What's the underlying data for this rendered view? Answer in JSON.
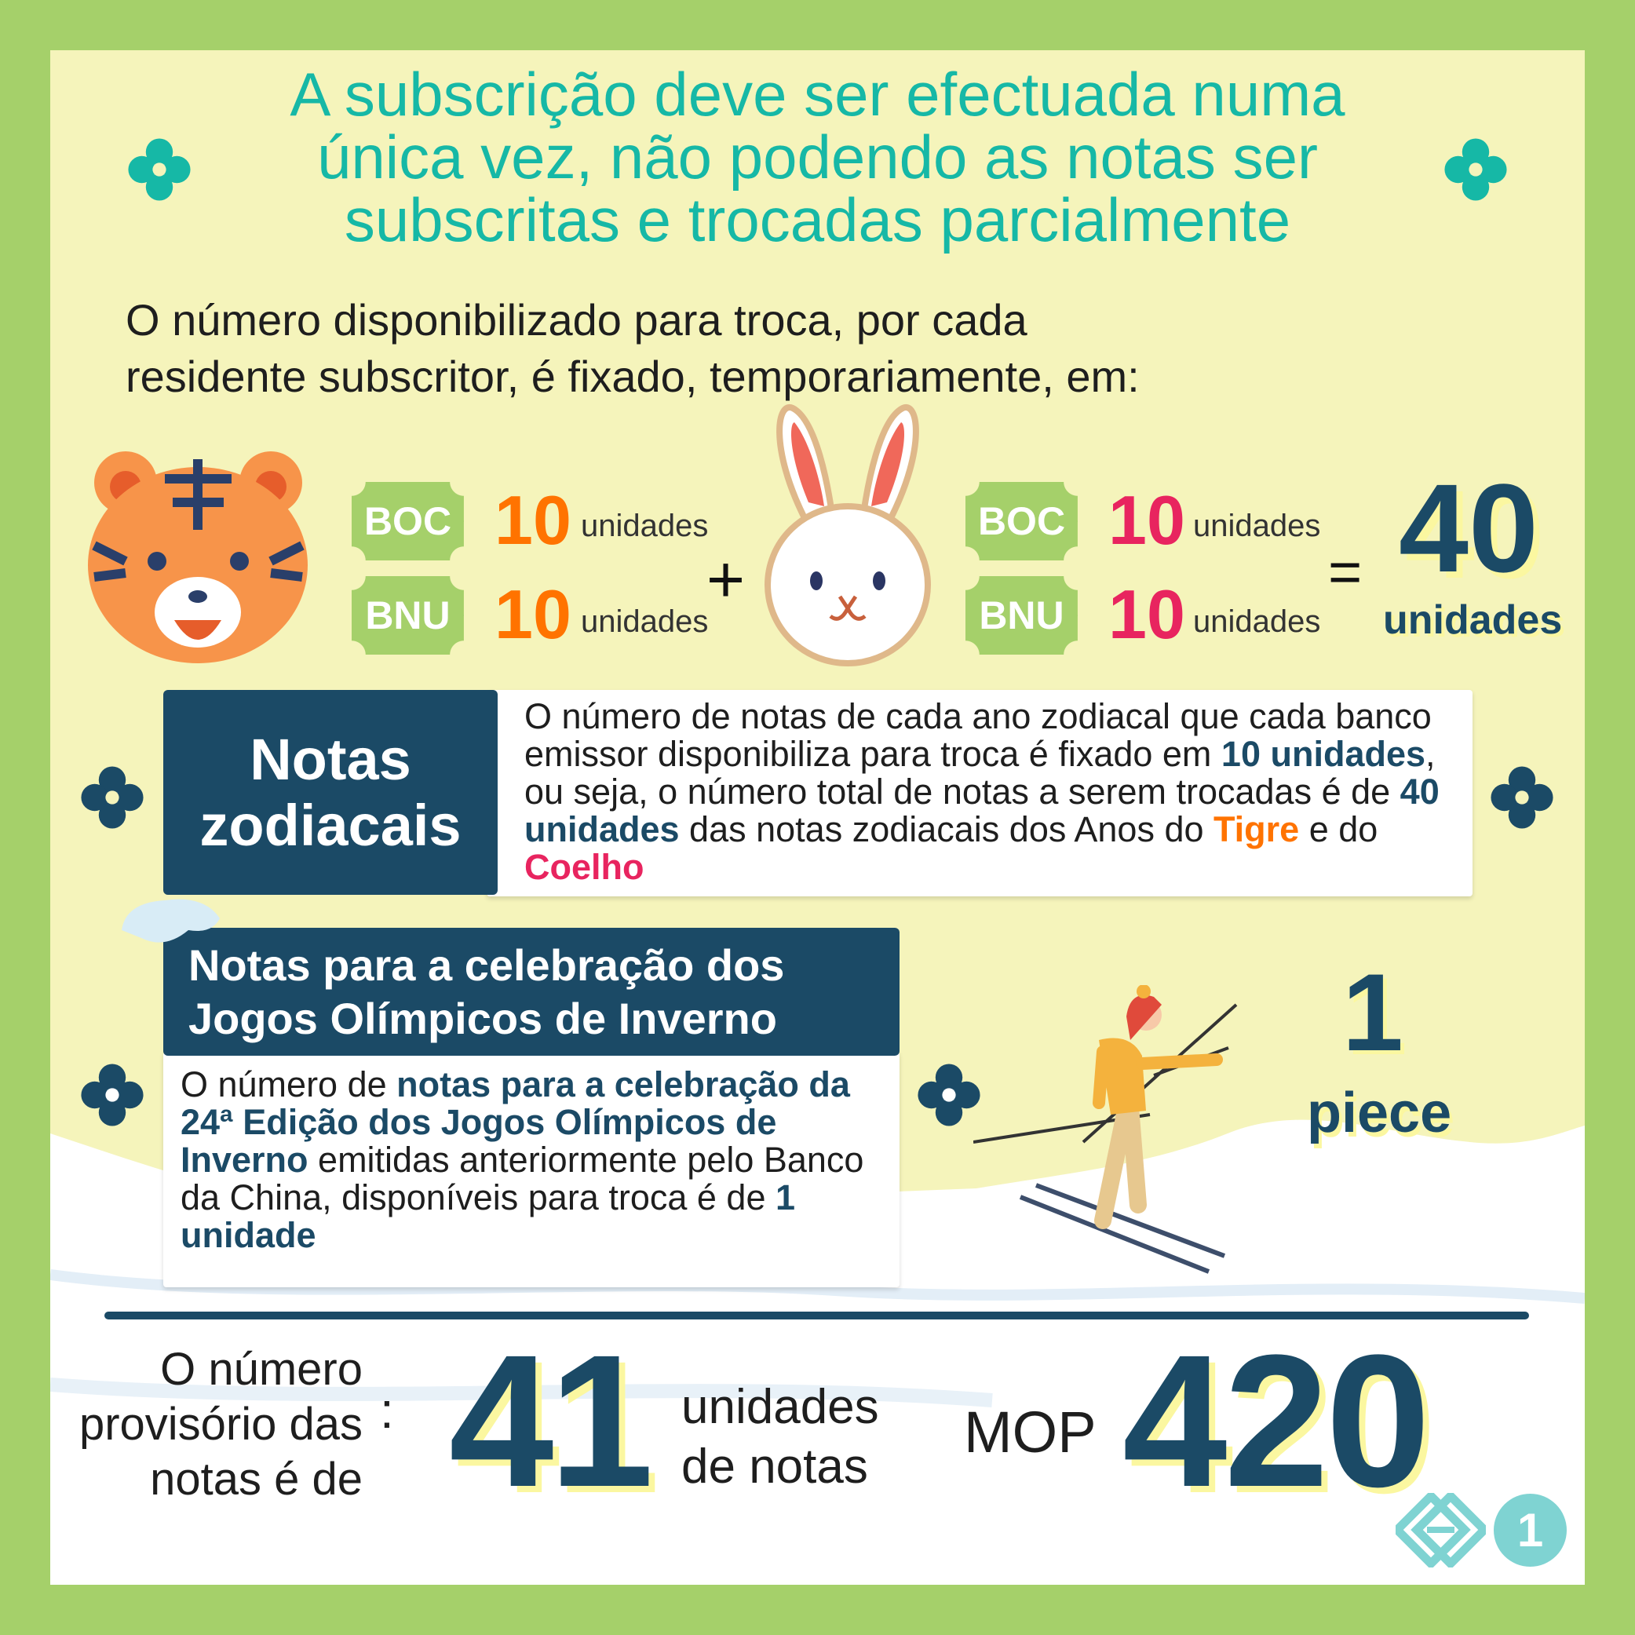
{
  "title": [
    "A subscrição deve ser efectuada numa",
    "única vez, não podendo as notas ser",
    "subscritas e trocadas parcialmente"
  ],
  "subtitle": [
    "O número disponibilizado para troca, por cada",
    "residente subscritor, é fixado, temporariamente, em:"
  ],
  "tiger_row": {
    "boc": "BOC",
    "bnu": "BNU",
    "boc_count": "10",
    "bnu_count": "10",
    "unit": "unidades",
    "color": "#ff7300"
  },
  "rabbit_row": {
    "boc": "BOC",
    "bnu": "BNU",
    "boc_count": "10",
    "bnu_count": "10",
    "unit": "unidades",
    "color": "#e8245f"
  },
  "operators": {
    "plus": "+",
    "equals": "="
  },
  "total": {
    "value": "40",
    "unit": "unidades"
  },
  "zodiac": {
    "heading": [
      "Notas",
      "zodiacais"
    ],
    "p1": "O número de notas de cada ano zodiacal que cada banco emissor disponibiliza para troca é fixado em ",
    "b1": "10 unidades",
    "p2": ", ou seja, o número total de notas a serem trocadas é de ",
    "b2": "40 unidades",
    "p3": " das notas zodiacais dos Anos do ",
    "tiger": "Tigre",
    "p4": " e do ",
    "rabbit": "Coelho"
  },
  "olympic": {
    "heading": [
      "Notas para a celebração dos",
      "Jogos Olímpicos de Inverno"
    ],
    "p1": "O número de ",
    "b1": "notas para a celebração da 24ª Edição dos Jogos Olímpicos de Inverno",
    "p2": " emitidas anteriormente pelo Banco da China, disponíveis para troca é de ",
    "b2": "1 unidade",
    "count": "1",
    "count_unit": "piece"
  },
  "summary": {
    "label": [
      "O número",
      "provisório das",
      "notas é de"
    ],
    "colon": ":",
    "count": "41",
    "count_unit": [
      "unidades",
      "de notas"
    ],
    "currency": "MOP",
    "amount": "420"
  },
  "page_number": "1",
  "colors": {
    "teal": "#16b8a6",
    "navy": "#1b4a66",
    "green": "#a5d06a",
    "panel": "#f5f4bb",
    "orange": "#ff7300",
    "pink": "#e8245f"
  }
}
